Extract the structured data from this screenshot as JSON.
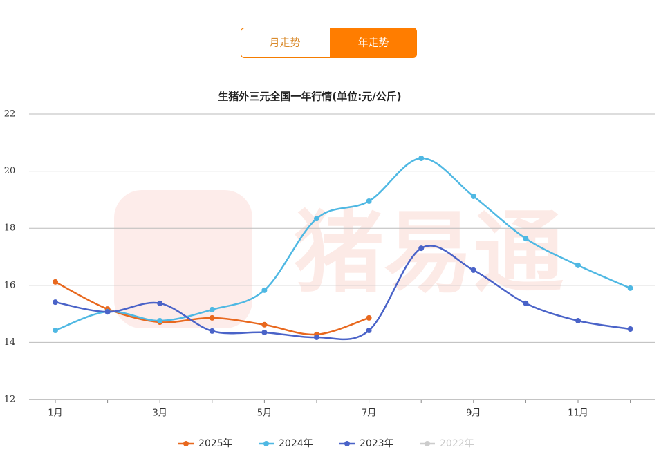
{
  "tabs": [
    "月走势",
    "年走势"
  ],
  "active_tab": 1,
  "chart_data": {
    "type": "line",
    "title": "生猪外三元全国一年行情(单位:元/公斤)",
    "watermark": "猪易通",
    "categories": [
      "1月",
      null,
      "3月",
      null,
      "5月",
      null,
      "7月",
      null,
      "9月",
      null,
      "11月",
      null
    ],
    "ylim": [
      12,
      22
    ],
    "yticks": [
      12,
      14,
      16,
      18,
      20,
      22
    ],
    "grid": true,
    "smooth": true,
    "legend": "bottom",
    "series": [
      {
        "name": "2025年",
        "color": "#e8681e",
        "visible": true,
        "values": [
          16.12,
          15.17,
          14.71,
          14.86,
          14.62,
          14.28,
          14.86,
          null,
          null,
          null,
          null,
          null
        ]
      },
      {
        "name": "2024年",
        "color": "#4fb8e3",
        "visible": true,
        "values": [
          14.42,
          15.08,
          14.76,
          15.15,
          15.83,
          18.34,
          18.95,
          20.45,
          19.12,
          17.64,
          16.7,
          15.9
        ]
      },
      {
        "name": "2023年",
        "color": "#4a63c8",
        "visible": true,
        "values": [
          15.41,
          15.07,
          15.37,
          14.4,
          14.35,
          14.18,
          14.42,
          17.3,
          16.53,
          15.37,
          14.76,
          14.47
        ]
      },
      {
        "name": "2022年",
        "color": "#cccccc",
        "visible": false,
        "values": [
          null,
          null,
          null,
          null,
          null,
          null,
          null,
          null,
          null,
          null,
          null,
          null
        ]
      }
    ]
  }
}
